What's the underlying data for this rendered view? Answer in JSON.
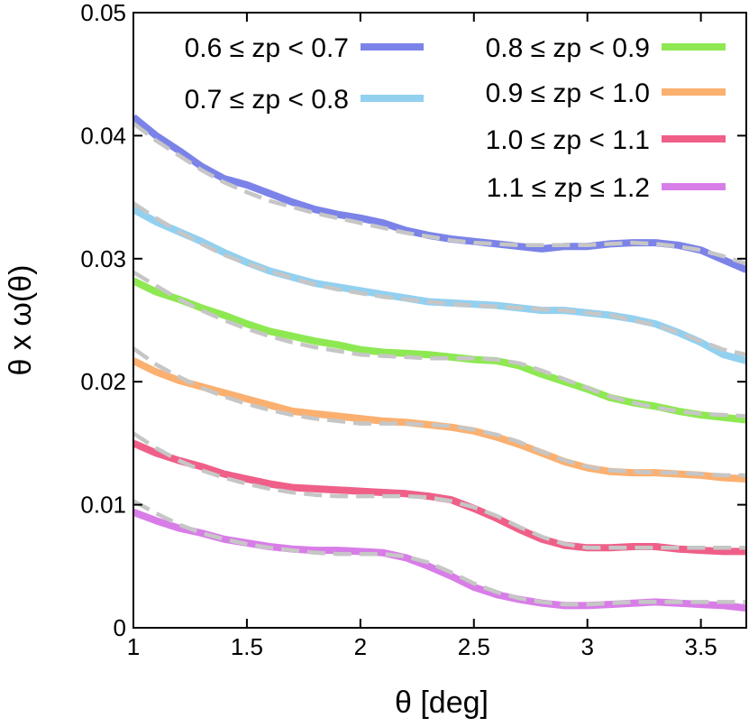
{
  "chart_data": {
    "type": "line",
    "title": "",
    "xlabel": "θ [deg]",
    "ylabel": "θ x ω(θ)",
    "xlim": [
      1,
      3.7
    ],
    "ylim": [
      0,
      0.05
    ],
    "xticks": [
      1,
      1.5,
      2,
      2.5,
      3,
      3.5
    ],
    "xtick_labels": [
      "1",
      "1.5",
      "2",
      "2.5",
      "3",
      "3.5"
    ],
    "yticks": [
      0,
      0.01,
      0.02,
      0.03,
      0.04,
      0.05
    ],
    "ytick_labels": [
      "0",
      "0.01",
      "0.02",
      "0.03",
      "0.04",
      "0.05"
    ],
    "grid": false,
    "legend_position": "top",
    "x": [
      1.0,
      1.1,
      1.2,
      1.3,
      1.4,
      1.5,
      1.6,
      1.7,
      1.8,
      1.9,
      2.0,
      2.1,
      2.2,
      2.3,
      2.4,
      2.5,
      2.6,
      2.7,
      2.8,
      2.9,
      3.0,
      3.1,
      3.2,
      3.3,
      3.4,
      3.5,
      3.6,
      3.7
    ],
    "series": [
      {
        "name": "0.6 ≤ zp < 0.7",
        "color": "#7b83e8",
        "values": [
          0.0415,
          0.04,
          0.0388,
          0.0375,
          0.0365,
          0.036,
          0.0353,
          0.0346,
          0.034,
          0.0336,
          0.0333,
          0.0329,
          0.0323,
          0.0319,
          0.0316,
          0.0314,
          0.0312,
          0.031,
          0.0308,
          0.031,
          0.031,
          0.0312,
          0.0313,
          0.0313,
          0.0311,
          0.0307,
          0.0299,
          0.0291
        ]
      },
      {
        "name": "0.7 ≤ zp < 0.8",
        "color": "#92d0f0",
        "values": [
          0.034,
          0.033,
          0.0322,
          0.0314,
          0.0305,
          0.0297,
          0.029,
          0.0285,
          0.028,
          0.0277,
          0.0274,
          0.0271,
          0.0268,
          0.0265,
          0.0264,
          0.0263,
          0.0262,
          0.026,
          0.0258,
          0.0258,
          0.0256,
          0.0254,
          0.0251,
          0.0247,
          0.024,
          0.0232,
          0.0222,
          0.0217
        ]
      },
      {
        "name": "0.8 ≤ zp < 0.9",
        "color": "#8ee852",
        "values": [
          0.0282,
          0.0273,
          0.0267,
          0.026,
          0.0254,
          0.0247,
          0.0241,
          0.0237,
          0.0233,
          0.023,
          0.0226,
          0.0224,
          0.0223,
          0.0222,
          0.022,
          0.0218,
          0.0217,
          0.0213,
          0.0206,
          0.02,
          0.0194,
          0.0187,
          0.0183,
          0.018,
          0.0176,
          0.0173,
          0.0171,
          0.0169
        ]
      },
      {
        "name": "0.9 ≤ zp < 1.0",
        "color": "#fbb070",
        "values": [
          0.0217,
          0.0208,
          0.0201,
          0.0196,
          0.0191,
          0.0186,
          0.0181,
          0.0176,
          0.0174,
          0.0172,
          0.017,
          0.0168,
          0.0167,
          0.0165,
          0.0163,
          0.016,
          0.0155,
          0.0149,
          0.0142,
          0.0135,
          0.013,
          0.0127,
          0.0126,
          0.0126,
          0.0125,
          0.0124,
          0.0122,
          0.0121
        ]
      },
      {
        "name": "1.0 ≤ zp < 1.1",
        "color": "#ef5f88",
        "values": [
          0.015,
          0.0142,
          0.0136,
          0.0131,
          0.0125,
          0.0121,
          0.0117,
          0.0114,
          0.0113,
          0.0112,
          0.0111,
          0.011,
          0.0109,
          0.0107,
          0.0104,
          0.0097,
          0.0089,
          0.008,
          0.0072,
          0.0067,
          0.0065,
          0.0065,
          0.0066,
          0.0066,
          0.0064,
          0.0063,
          0.0062,
          0.0062
        ]
      },
      {
        "name": "1.1 ≤ zp ≤ 1.2",
        "color": "#d87de8",
        "values": [
          0.0094,
          0.0087,
          0.0081,
          0.0077,
          0.0072,
          0.0069,
          0.0066,
          0.0064,
          0.0063,
          0.0063,
          0.0062,
          0.0061,
          0.0057,
          0.005,
          0.0042,
          0.0033,
          0.0027,
          0.0023,
          0.002,
          0.0018,
          0.0018,
          0.0019,
          0.002,
          0.0021,
          0.002,
          0.0019,
          0.0018,
          0.0016
        ]
      }
    ],
    "fits": [
      {
        "name": "fit 0.6 ≤ zp < 0.7",
        "color": "#c6c6c6",
        "values": [
          0.041,
          0.0396,
          0.0384,
          0.0372,
          0.0362,
          0.0354,
          0.0347,
          0.0342,
          0.0337,
          0.0333,
          0.0329,
          0.0325,
          0.0321,
          0.0318,
          0.0315,
          0.0313,
          0.0312,
          0.0311,
          0.0311,
          0.0311,
          0.0311,
          0.0312,
          0.0313,
          0.0312,
          0.031,
          0.0307,
          0.0302,
          0.0296
        ]
      },
      {
        "name": "fit 0.7 ≤ zp < 0.8",
        "color": "#c6c6c6",
        "values": [
          0.0345,
          0.0333,
          0.0322,
          0.0312,
          0.0303,
          0.0296,
          0.029,
          0.0284,
          0.0279,
          0.0275,
          0.0272,
          0.0269,
          0.0267,
          0.0265,
          0.0263,
          0.0262,
          0.0261,
          0.026,
          0.0259,
          0.0258,
          0.0256,
          0.0254,
          0.025,
          0.0246,
          0.024,
          0.0233,
          0.0226,
          0.0222
        ]
      },
      {
        "name": "fit 0.8 ≤ zp < 0.9",
        "color": "#c6c6c6",
        "values": [
          0.0289,
          0.0278,
          0.0267,
          0.0258,
          0.025,
          0.0243,
          0.0237,
          0.0232,
          0.0228,
          0.0225,
          0.0222,
          0.0221,
          0.022,
          0.0219,
          0.0219,
          0.0219,
          0.0218,
          0.0215,
          0.0209,
          0.0202,
          0.0195,
          0.0188,
          0.0183,
          0.0179,
          0.0176,
          0.0174,
          0.0173,
          0.0172
        ]
      },
      {
        "name": "fit 0.9 ≤ zp < 1.0",
        "color": "#c6c6c6",
        "values": [
          0.0227,
          0.0214,
          0.0204,
          0.0195,
          0.0188,
          0.0182,
          0.0177,
          0.0173,
          0.017,
          0.0168,
          0.0166,
          0.0166,
          0.0166,
          0.0165,
          0.0164,
          0.0161,
          0.0157,
          0.0151,
          0.0143,
          0.0136,
          0.0131,
          0.0128,
          0.0127,
          0.0126,
          0.0126,
          0.0125,
          0.0124,
          0.0124
        ]
      },
      {
        "name": "fit 1.0 ≤ zp < 1.1",
        "color": "#c6c6c6",
        "values": [
          0.0158,
          0.0146,
          0.0136,
          0.0128,
          0.0122,
          0.0117,
          0.0113,
          0.011,
          0.0108,
          0.0107,
          0.0107,
          0.0107,
          0.0107,
          0.0106,
          0.0103,
          0.0098,
          0.0091,
          0.0082,
          0.0074,
          0.0068,
          0.0065,
          0.0065,
          0.0065,
          0.0065,
          0.0065,
          0.0065,
          0.0065,
          0.0065
        ]
      },
      {
        "name": "fit 1.1 ≤ zp ≤ 1.2",
        "color": "#c6c6c6",
        "values": [
          0.0103,
          0.0093,
          0.0084,
          0.0077,
          0.0072,
          0.0068,
          0.0065,
          0.0063,
          0.0061,
          0.006,
          0.006,
          0.006,
          0.0058,
          0.0053,
          0.0045,
          0.0036,
          0.0029,
          0.0024,
          0.0021,
          0.0019,
          0.0019,
          0.002,
          0.0021,
          0.0021,
          0.0021,
          0.0021,
          0.0021,
          0.0021
        ]
      }
    ]
  }
}
